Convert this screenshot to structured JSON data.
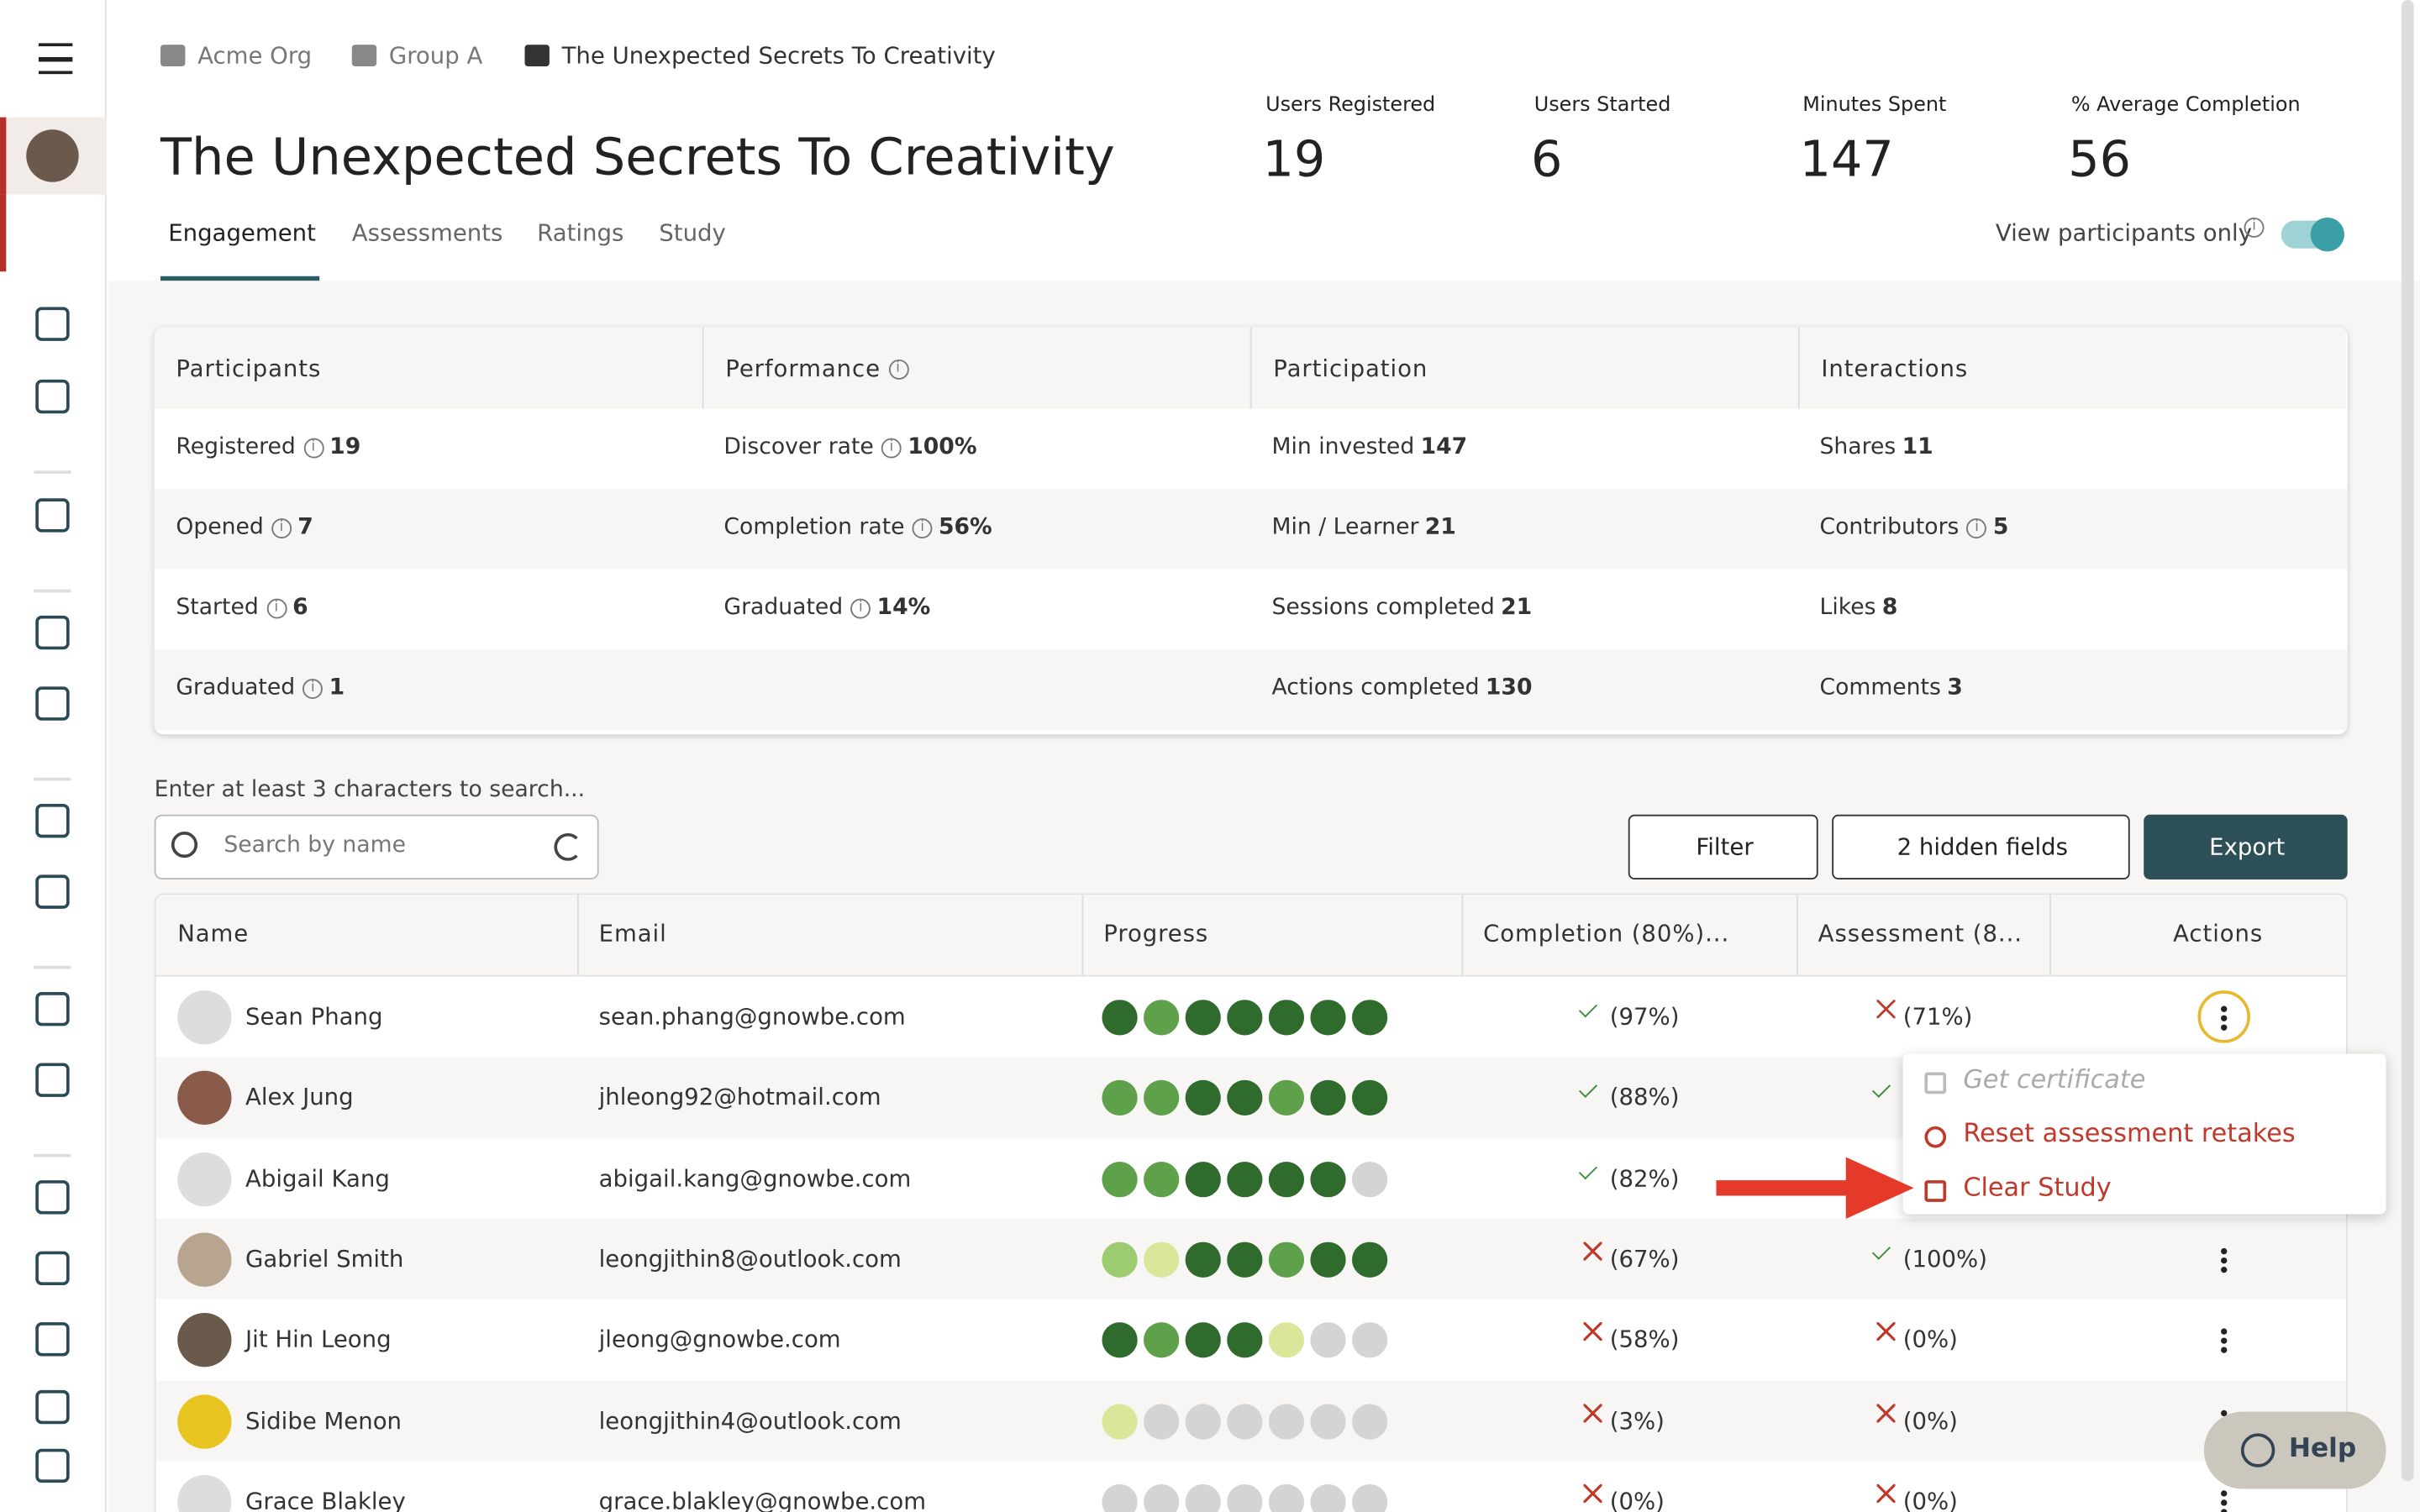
{
  "breadcrumb": [
    "Acme Org",
    "Group A",
    "The Unexpected Secrets To Creativity"
  ],
  "title": "The Unexpected Secrets To Creativity",
  "stats": [
    {
      "label": "Users Registered",
      "value": 19
    },
    {
      "label": "Users Started",
      "value": 6
    },
    {
      "label": "Minutes Spent",
      "value": 147
    },
    {
      "label": "% Average Completion",
      "value": 56
    }
  ],
  "tabs": [
    "Engagement",
    "Assessments",
    "Ratings",
    "Study"
  ],
  "toggle_label": "View participants only",
  "summary": {
    "headers": [
      {
        "text": "Participants",
        "info": false
      },
      {
        "text": "Performance",
        "info": true
      },
      {
        "text": "Participation",
        "info": false
      },
      {
        "text": "Interactions",
        "info": false
      }
    ],
    "rows": [
      [
        {
          "label": "Registered",
          "info": true,
          "value": "19"
        },
        {
          "label": "Discover rate",
          "info": true,
          "value": "100%"
        },
        {
          "label": "Min invested",
          "info": false,
          "value": "147"
        },
        {
          "label": "Shares",
          "info": false,
          "value": "11"
        }
      ],
      [
        {
          "label": "Opened",
          "info": true,
          "value": "7"
        },
        {
          "label": "Completion rate",
          "info": true,
          "value": "56%"
        },
        {
          "label": "Min / Learner",
          "info": false,
          "value": "21"
        },
        {
          "label": "Contributors",
          "info": true,
          "value": "5"
        }
      ],
      [
        {
          "label": "Started",
          "info": true,
          "value": "6"
        },
        {
          "label": "Graduated",
          "info": true,
          "value": "14%"
        },
        {
          "label": "Sessions completed",
          "info": false,
          "value": "21"
        },
        {
          "label": "Likes",
          "info": false,
          "value": "8"
        }
      ],
      [
        {
          "label": "Graduated",
          "info": true,
          "value": "1"
        },
        null,
        {
          "label": "Actions completed",
          "info": false,
          "value": "130"
        },
        {
          "label": "Comments",
          "info": false,
          "value": "3"
        }
      ]
    ]
  },
  "search": {
    "hint": "Enter at least 3 characters to search...",
    "placeholder": "Search by name"
  },
  "buttons": {
    "filter": "Filter",
    "hidden": "2 hidden fields",
    "export": "Export"
  },
  "table": {
    "headers": [
      "Name",
      "Email",
      "Progress",
      "Completion (80%)...",
      "Assessment (8...",
      "Actions"
    ],
    "rows": [
      {
        "name": "Sean Phang",
        "email": "sean.phang@gnowbe.com",
        "completion": {
          "pass": true,
          "text": "(97%)"
        },
        "assessment": {
          "pass": false,
          "text": "(71%)"
        }
      },
      {
        "name": "Alex Jung",
        "email": "jhleong92@hotmail.com",
        "completion": {
          "pass": true,
          "text": "(88%)"
        },
        "assessment": {
          "pass": true,
          "text": null
        }
      },
      {
        "name": "Abigail Kang",
        "email": "abigail.kang@gnowbe.com",
        "completion": {
          "pass": true,
          "text": "(82%)"
        },
        "assessment": null
      },
      {
        "name": "Gabriel Smith",
        "email": "leongjithin8@outlook.com",
        "completion": {
          "pass": false,
          "text": "(67%)"
        },
        "assessment": {
          "pass": true,
          "text": "(100%)"
        }
      },
      {
        "name": "Jit Hin Leong",
        "email": "jleong@gnowbe.com",
        "completion": {
          "pass": false,
          "text": "(58%)"
        },
        "assessment": {
          "pass": false,
          "text": "(0%)"
        }
      },
      {
        "name": "Sidibe Menon",
        "email": "leongjithin4@outlook.com",
        "completion": {
          "pass": false,
          "text": "(3%)"
        },
        "assessment": {
          "pass": false,
          "text": "(0%)"
        }
      },
      {
        "name": "Grace Blakley",
        "email": "grace.blakley@gnowbe.com",
        "completion": {
          "pass": false,
          "text": "(0%)"
        },
        "assessment": {
          "pass": false,
          "text": "(0%)"
        }
      }
    ]
  },
  "menu": [
    "Get certificate",
    "Reset assessment retakes",
    "Clear Study"
  ],
  "help": "Help"
}
